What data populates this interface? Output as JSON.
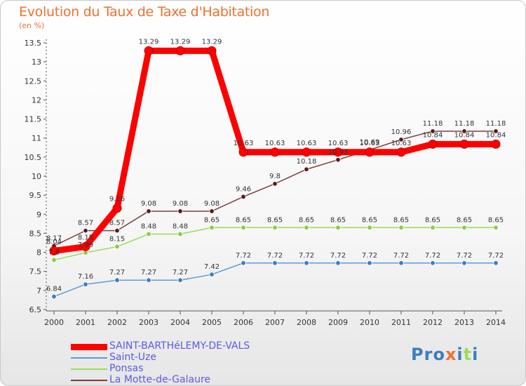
{
  "title": "Evolution du Taux de Taxe d'Habitation",
  "subtitle": "(en %)",
  "logo": "Proxiti",
  "colors": {
    "title": "#f07030",
    "legend_text": "#5a5ae6",
    "series": [
      "#ff0000",
      "#5b9bd5",
      "#99dd55",
      "#7a3f3f"
    ],
    "markers": [
      "#ff0000",
      "#3a7fc0",
      "#88cc44",
      "#5a1a1a"
    ]
  },
  "chart_data": {
    "type": "line",
    "title": "Evolution du Taux de Taxe d'Habitation",
    "ylabel": "(en %)",
    "x": [
      2000,
      2001,
      2002,
      2003,
      2004,
      2005,
      2006,
      2007,
      2008,
      2009,
      2010,
      2011,
      2012,
      2013,
      2014
    ],
    "ylim": [
      6.5,
      13.5
    ],
    "yticks": [
      6.5,
      7,
      7.5,
      8,
      8.5,
      9,
      9.5,
      10,
      10.5,
      11,
      11.5,
      12,
      12.5,
      13,
      13.5
    ],
    "legend_position": "bottom-left",
    "series": [
      {
        "name": "SAINT-BARTHéLEMY-DE-VALS",
        "values": [
          8.04,
          8.15,
          9.16,
          13.29,
          13.29,
          13.29,
          10.63,
          10.63,
          10.63,
          10.63,
          10.63,
          10.63,
          10.84,
          10.84,
          10.84
        ]
      },
      {
        "name": "Saint-Uze",
        "values": [
          6.84,
          7.16,
          7.27,
          7.27,
          7.27,
          7.42,
          7.72,
          7.72,
          7.72,
          7.72,
          7.72,
          7.72,
          7.72,
          7.72,
          7.72
        ]
      },
      {
        "name": "Ponsas",
        "values": [
          7.8,
          7.99,
          8.15,
          8.48,
          8.48,
          8.65,
          8.65,
          8.65,
          8.65,
          8.65,
          8.65,
          8.65,
          8.65,
          8.65,
          8.65
        ]
      },
      {
        "name": "La Motte-de-Galaure",
        "values": [
          8.17,
          8.57,
          8.57,
          9.08,
          9.08,
          9.08,
          9.46,
          9.8,
          10.18,
          10.43,
          10.69,
          10.96,
          11.18,
          11.18,
          11.18
        ]
      }
    ]
  }
}
